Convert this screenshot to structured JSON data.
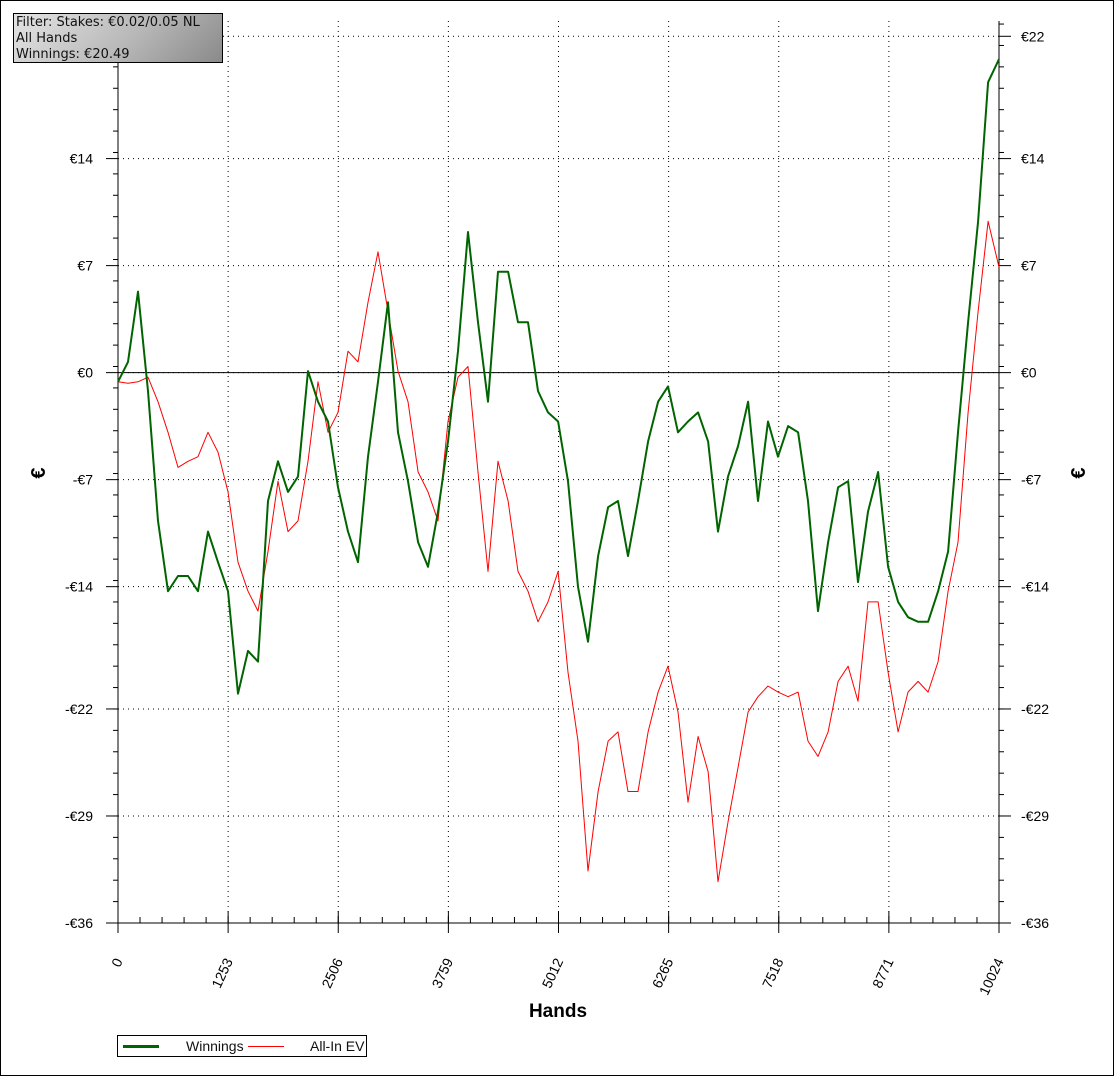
{
  "filter_box": {
    "line1": "Filter: Stakes: €0.02/0.05 NL",
    "line2": "All Hands",
    "line3": "Winnings: €20.49"
  },
  "chart_data": {
    "type": "line",
    "xlabel": "Hands",
    "ylabel": "€",
    "xlim": [
      0,
      10024
    ],
    "ylim": [
      -36,
      23
    ],
    "x_ticks": [
      0,
      1253,
      2506,
      3759,
      5012,
      6265,
      7518,
      8771,
      10024
    ],
    "x_tick_labels": [
      "0",
      "1253",
      "2506",
      "3759",
      "5012",
      "6265",
      "7518",
      "8771",
      "10024"
    ],
    "y_ticks": [
      22,
      14,
      7,
      0,
      -7,
      -14,
      -22,
      -29,
      -36
    ],
    "y_tick_labels": [
      "€22",
      "€14",
      "€7",
      "€0",
      "-€7",
      "-€14",
      "-€22",
      "-€29",
      "-€36"
    ],
    "grid": true,
    "legend_placement": "bottom-left",
    "x": [
      0,
      114,
      228,
      341,
      455,
      569,
      683,
      796,
      910,
      1024,
      1138,
      1252,
      1365,
      1479,
      1593,
      1707,
      1820,
      1934,
      2048,
      2162,
      2276,
      2389,
      2503,
      2617,
      2731,
      2845,
      2958,
      3072,
      3186,
      3300,
      3414,
      3527,
      3641,
      3755,
      3869,
      3982,
      4096,
      4210,
      4324,
      4438,
      4551,
      4665,
      4779,
      4893,
      5007,
      5120,
      5234,
      5348,
      5462,
      5576,
      5689,
      5803,
      5917,
      6031,
      6145,
      6258,
      6372,
      6486,
      6600,
      6714,
      6827,
      6941,
      7055,
      7169,
      7282,
      7396,
      7510,
      7624,
      7738,
      7851,
      7965,
      8079,
      8193,
      8307,
      8420,
      8534,
      8648,
      8762,
      8876,
      8989,
      9103,
      9217,
      9331,
      9445,
      9558,
      9672,
      9786,
      9900,
      10024
    ],
    "series": [
      {
        "name": "Winnings",
        "color": "#006400",
        "values": [
          -0.6,
          0.7,
          5.3,
          -1.2,
          -9.7,
          -14.3,
          -13.3,
          -13.3,
          -14.3,
          -10.4,
          -12.4,
          -14.3,
          -21.0,
          -18.2,
          -18.9,
          -8.4,
          -5.8,
          -7.8,
          -6.8,
          0.1,
          -1.9,
          -3.2,
          -7.5,
          -10.4,
          -12.4,
          -5.5,
          -0.6,
          4.6,
          -3.9,
          -7.1,
          -11.1,
          -12.7,
          -9.1,
          -4.5,
          1.4,
          9.2,
          3.3,
          -1.9,
          6.6,
          6.6,
          3.3,
          3.3,
          -1.2,
          -2.6,
          -3.2,
          -7.1,
          -14.0,
          -17.6,
          -12.0,
          -8.8,
          -8.4,
          -12.0,
          -8.4,
          -4.5,
          -1.9,
          -0.9,
          -3.9,
          -3.2,
          -2.6,
          -4.5,
          -10.4,
          -6.8,
          -4.8,
          -1.9,
          -8.4,
          -3.2,
          -5.5,
          -3.5,
          -3.9,
          -8.4,
          -15.6,
          -11.1,
          -7.5,
          -7.1,
          -13.7,
          -9.1,
          -6.5,
          -12.7,
          -15.0,
          -16.0,
          -16.3,
          -16.3,
          -14.3,
          -11.7,
          -3.9,
          3.3,
          9.9,
          19.0,
          20.5
        ]
      },
      {
        "name": "All-In EV",
        "color": "#ff0000",
        "values": [
          -0.6,
          -0.7,
          -0.6,
          -0.3,
          -1.9,
          -3.9,
          -6.2,
          -5.8,
          -5.5,
          -3.9,
          -5.2,
          -7.8,
          -12.4,
          -14.3,
          -15.6,
          -11.7,
          -7.1,
          -10.4,
          -9.7,
          -5.8,
          -0.6,
          -3.9,
          -2.6,
          1.4,
          0.7,
          4.6,
          7.9,
          4.0,
          0.1,
          -1.9,
          -6.5,
          -7.8,
          -9.7,
          -3.2,
          -0.3,
          0.4,
          -6.5,
          -13.0,
          -5.8,
          -8.4,
          -13.0,
          -14.3,
          -16.3,
          -15.0,
          -13.0,
          -19.6,
          -24.1,
          -32.6,
          -27.4,
          -24.1,
          -23.5,
          -27.4,
          -27.4,
          -23.5,
          -20.9,
          -19.2,
          -22.2,
          -28.1,
          -23.8,
          -26.1,
          -33.3,
          -29.4,
          -25.8,
          -22.2,
          -21.2,
          -20.5,
          -20.9,
          -21.2,
          -20.9,
          -24.1,
          -25.1,
          -23.5,
          -20.2,
          -19.2,
          -21.5,
          -15.0,
          -15.0,
          -19.6,
          -23.5,
          -20.9,
          -20.2,
          -20.9,
          -18.9,
          -14.3,
          -11.1,
          -2.6,
          4.0,
          9.9,
          6.9
        ]
      }
    ]
  }
}
